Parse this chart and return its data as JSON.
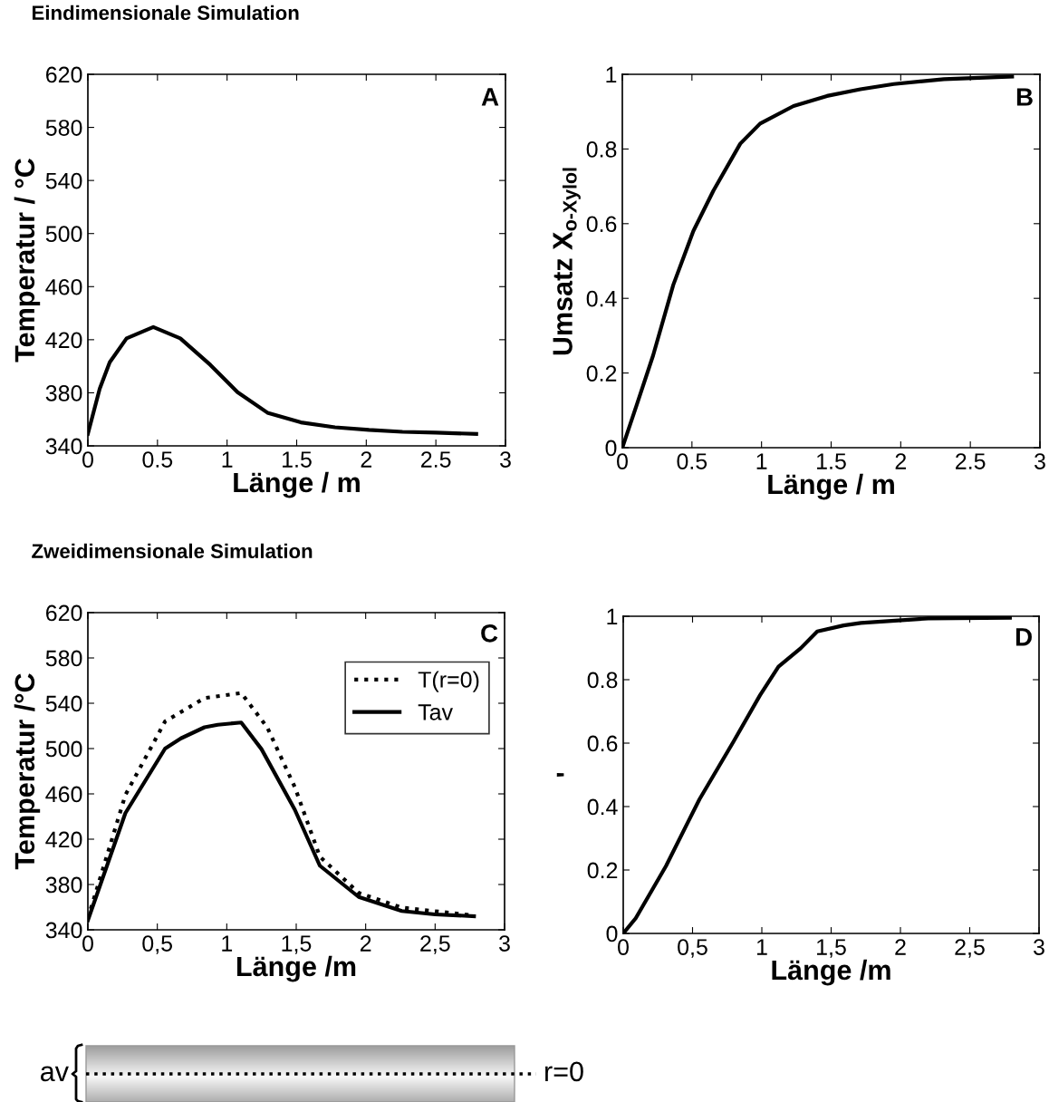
{
  "chart_data": [
    {
      "type": "line",
      "title": "Eindimensionale Simulation",
      "xlabel": "Länge / m",
      "ylabel": "Temperatur / °C",
      "annotations": [
        "A"
      ],
      "xlim": [
        0,
        3
      ],
      "ylim": [
        340,
        620
      ],
      "xticks": [
        0,
        0.5,
        1,
        1.5,
        2,
        2.5,
        3
      ],
      "yticks": [
        340,
        380,
        420,
        460,
        500,
        540,
        580,
        620
      ],
      "grid": false,
      "legend": false,
      "marker": "none",
      "line_style": "solid",
      "series": [
        {
          "color": "#000000",
          "x": [
            0,
            0.085,
            0.157,
            0.278,
            0.47,
            0.664,
            0.88,
            1.075,
            1.29,
            1.53,
            1.775,
            2.02,
            2.26,
            2.5,
            2.79
          ],
          "values": [
            349,
            383,
            403,
            421,
            429.5,
            421,
            401,
            380.5,
            365,
            357.7,
            354,
            352,
            350.6,
            350,
            349
          ]
        }
      ]
    },
    {
      "type": "line",
      "xlabel": "Länge / m",
      "ylabel": "Umsatz X$_{o-Xylol}$",
      "annotations": [
        "B"
      ],
      "xlim": [
        0,
        3
      ],
      "ylim": [
        0,
        1
      ],
      "xticks": [
        0,
        0.5,
        1,
        1.5,
        2,
        2.5,
        3
      ],
      "yticks": [
        0,
        0.2,
        0.4,
        0.6,
        0.8,
        1
      ],
      "grid": false,
      "legend": false,
      "marker": "none",
      "line_style": "solid",
      "series": [
        {
          "color": "#000000",
          "x": [
            0,
            0.101,
            0.221,
            0.366,
            0.51,
            0.654,
            0.847,
            0.99,
            1.23,
            1.47,
            1.71,
            1.95,
            2.31,
            2.8
          ],
          "values": [
            0,
            0.112,
            0.247,
            0.436,
            0.58,
            0.688,
            0.814,
            0.868,
            0.915,
            0.942,
            0.96,
            0.974,
            0.987,
            0.994
          ]
        }
      ]
    },
    {
      "type": "line",
      "title": "Zweidimensionale Simulation",
      "xlabel": "Länge /m",
      "ylabel": "Temperatur /°C",
      "annotations": [
        "C"
      ],
      "xlim": [
        0,
        3
      ],
      "ylim": [
        340,
        620
      ],
      "xticks": [
        0,
        {
          "value": 0.5,
          "label": "0,5"
        },
        1,
        {
          "value": 1.5,
          "label": "1,5"
        },
        2,
        {
          "value": 2.5,
          "label": "2,5"
        },
        3
      ],
      "yticks": [
        340,
        380,
        420,
        460,
        500,
        540,
        580,
        620
      ],
      "grid": false,
      "legend": "top right",
      "marker": "none",
      "series": [
        {
          "name": "T(r=0)",
          "color": "#000000",
          "line_style": "dotted",
          "x": [
            0,
            0.27,
            0.556,
            0.84,
            1.104,
            1.29,
            1.49,
            1.67,
            1.95,
            2.26,
            2.78
          ],
          "values": [
            350,
            459,
            524,
            544.6,
            549,
            519,
            466,
            404.6,
            372.6,
            359.6,
            352.7
          ]
        },
        {
          "name": "Tav",
          "color": "#000000",
          "line_style": "solid",
          "x": [
            0,
            0.27,
            0.556,
            0.67,
            0.84,
            0.935,
            1.104,
            1.25,
            1.49,
            1.67,
            1.95,
            2.26,
            2.5,
            2.78
          ],
          "values": [
            348.3,
            443,
            500,
            509,
            518.8,
            521,
            523,
            499.5,
            446,
            396.6,
            369,
            356.6,
            353.6,
            352
          ]
        }
      ]
    },
    {
      "type": "line",
      "xlabel": "Länge /m",
      "ylabel": "'",
      "annotations": [
        "D"
      ],
      "xlim": [
        0,
        3
      ],
      "ylim": [
        0,
        1
      ],
      "xticks": [
        0,
        {
          "value": 0.5,
          "label": "0,5"
        },
        1,
        {
          "value": 1.5,
          "label": "1,5"
        },
        2,
        {
          "value": 2.5,
          "label": "2,5"
        },
        3
      ],
      "yticks": [
        0,
        0.2,
        0.4,
        0.6,
        0.8,
        1
      ],
      "grid": false,
      "legend": false,
      "marker": "none",
      "line_style": "solid",
      "series": [
        {
          "color": "#000000",
          "x": [
            0,
            0.09,
            0.308,
            0.55,
            0.793,
            0.987,
            1.12,
            1.28,
            1.4,
            1.59,
            1.715,
            1.96,
            2.2,
            2.79
          ],
          "values": [
            0,
            0.048,
            0.212,
            0.423,
            0.603,
            0.751,
            0.841,
            0.899,
            0.952,
            0.971,
            0.979,
            0.986,
            0.993,
            0.995
          ]
        }
      ]
    },
    {
      "type": "other",
      "annotations": [
        "av",
        "r=0"
      ]
    }
  ]
}
